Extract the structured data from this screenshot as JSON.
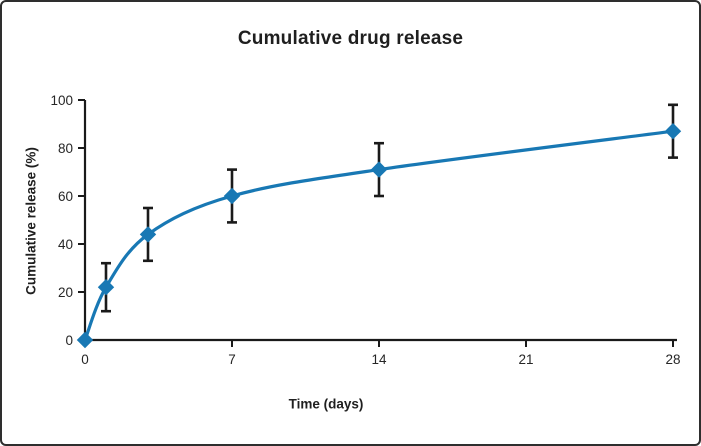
{
  "figure": {
    "background_color": "#ffffff",
    "border_color": "#2e2e2e"
  },
  "chart_data": {
    "type": "line",
    "title": "Cumulative drug release",
    "xlabel": "Time (days)",
    "ylabel": "Cumulative release (%)",
    "x": [
      0,
      1,
      3,
      7,
      14,
      28
    ],
    "y": [
      0,
      22,
      44,
      60,
      71,
      87
    ],
    "y_error": [
      0,
      10,
      11,
      11,
      11,
      11
    ],
    "x_ticks": [
      0,
      7,
      14,
      21,
      28
    ],
    "y_ticks": [
      0,
      20,
      40,
      60,
      80,
      100
    ],
    "xlim": [
      0,
      28
    ],
    "ylim": [
      0,
      100
    ],
    "grid": false,
    "legend": null,
    "line_color": "#1878b4",
    "marker": "diamond",
    "marker_color": "#1878b4",
    "error_bar_color": "#1a1a1a",
    "axis_color": "#1a1a1a",
    "tick_label_color": "#262626"
  }
}
